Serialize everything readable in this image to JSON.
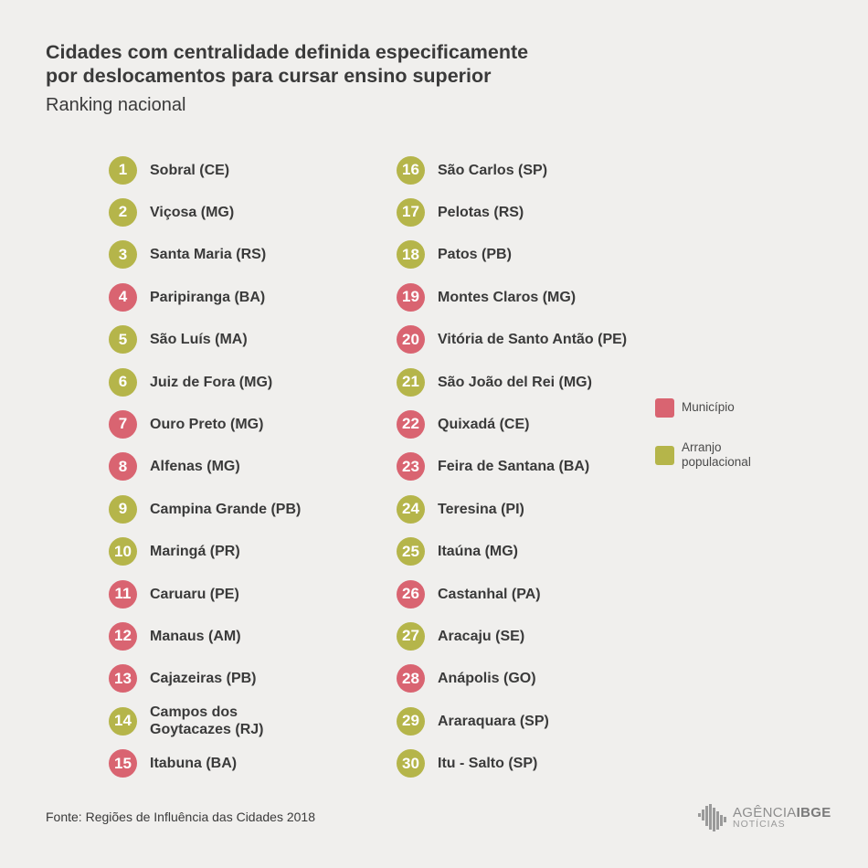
{
  "header": {
    "title_line1": "Cidades com centralidade definida especificamente",
    "title_line2": "por deslocamentos para cursar ensino superior",
    "subtitle": "Ranking nacional"
  },
  "colors": {
    "municipio": "#d96471",
    "arranjo": "#b5b54a",
    "background": "#f0efed"
  },
  "ranking": [
    {
      "rank": "1",
      "name": "Sobral (CE)",
      "type": "arranjo"
    },
    {
      "rank": "2",
      "name": "Viçosa (MG)",
      "type": "arranjo"
    },
    {
      "rank": "3",
      "name": "Santa Maria (RS)",
      "type": "arranjo"
    },
    {
      "rank": "4",
      "name": "Paripiranga (BA)",
      "type": "municipio"
    },
    {
      "rank": "5",
      "name": "São Luís (MA)",
      "type": "arranjo"
    },
    {
      "rank": "6",
      "name": "Juiz de Fora (MG)",
      "type": "arranjo"
    },
    {
      "rank": "7",
      "name": "Ouro Preto (MG)",
      "type": "municipio"
    },
    {
      "rank": "8",
      "name": "Alfenas (MG)",
      "type": "municipio"
    },
    {
      "rank": "9",
      "name": "Campina Grande (PB)",
      "type": "arranjo"
    },
    {
      "rank": "10",
      "name": "Maringá (PR)",
      "type": "arranjo"
    },
    {
      "rank": "11",
      "name": "Caruaru (PE)",
      "type": "municipio"
    },
    {
      "rank": "12",
      "name": "Manaus (AM)",
      "type": "municipio"
    },
    {
      "rank": "13",
      "name": "Cajazeiras (PB)",
      "type": "municipio"
    },
    {
      "rank": "14",
      "name": "Campos dos Goytacazes (RJ)",
      "name_line1": "Campos dos",
      "name_line2": "Goytacazes (RJ)",
      "type": "arranjo"
    },
    {
      "rank": "15",
      "name": "Itabuna (BA)",
      "type": "municipio"
    },
    {
      "rank": "16",
      "name": "São Carlos (SP)",
      "type": "arranjo"
    },
    {
      "rank": "17",
      "name": "Pelotas (RS)",
      "type": "arranjo"
    },
    {
      "rank": "18",
      "name": "Patos (PB)",
      "type": "arranjo"
    },
    {
      "rank": "19",
      "name": "Montes Claros (MG)",
      "type": "municipio"
    },
    {
      "rank": "20",
      "name": "Vitória de Santo Antão (PE)",
      "type": "municipio"
    },
    {
      "rank": "21",
      "name": "São João del Rei (MG)",
      "type": "arranjo"
    },
    {
      "rank": "22",
      "name": "Quixadá (CE)",
      "type": "municipio"
    },
    {
      "rank": "23",
      "name": "Feira de Santana (BA)",
      "type": "municipio"
    },
    {
      "rank": "24",
      "name": "Teresina (PI)",
      "type": "arranjo"
    },
    {
      "rank": "25",
      "name": "Itaúna (MG)",
      "type": "arranjo"
    },
    {
      "rank": "26",
      "name": "Castanhal (PA)",
      "type": "municipio"
    },
    {
      "rank": "27",
      "name": "Aracaju (SE)",
      "type": "arranjo"
    },
    {
      "rank": "28",
      "name": "Anápolis (GO)",
      "type": "municipio"
    },
    {
      "rank": "29",
      "name": "Araraquara (SP)",
      "type": "arranjo"
    },
    {
      "rank": "30",
      "name": "Itu - Salto (SP)",
      "type": "arranjo"
    }
  ],
  "legend": {
    "municipio": "Município",
    "arranjo_line1": "Arranjo",
    "arranjo_line2": "populacional"
  },
  "footer": {
    "source": "Fonte: Regiões de Influência das Cidades 2018",
    "logo_agencia": "AGÊNCIA",
    "logo_ibge": "IBGE",
    "logo_noticias": "NOTÍCIAS"
  }
}
